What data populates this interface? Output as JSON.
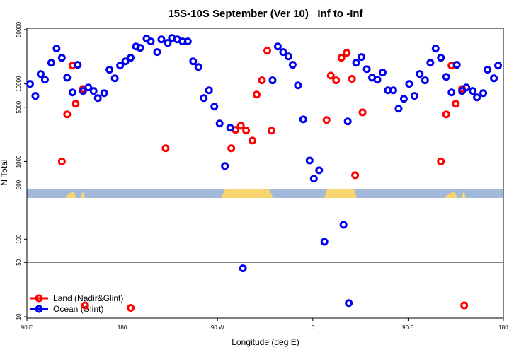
{
  "chart_data": {
    "type": "scatter",
    "title": "15S-10S September (Ver 10)   Inf to -Inf",
    "x_label": "Longitude (deg E)",
    "y_label": "N Total",
    "log_y": true,
    "legend": "lower-left",
    "xlim": [
      90,
      540
    ],
    "xticks": [
      {
        "value": 90,
        "label": "90 E"
      },
      180,
      {
        "value": 270,
        "label": "90 W"
      },
      {
        "value": 360,
        "label": "0"
      },
      {
        "value": 450,
        "label": "90 E"
      },
      {
        "value": 540,
        "label": "180"
      }
    ],
    "ylim": [
      9.6,
      52000
    ],
    "yticks": [
      10,
      50,
      100,
      500,
      1000,
      5000,
      10000,
      50000
    ],
    "series": [
      {
        "name": "Land (Nadir&Glint)",
        "color": "#ff0000",
        "x": [
          123,
          128,
          133,
          136,
          143,
          145,
          188,
          221,
          283,
          287,
          292,
          297,
          303,
          307,
          312,
          317,
          321,
          373,
          377,
          382,
          387,
          392,
          397,
          400,
          407,
          481,
          486,
          491,
          495,
          501,
          503
        ],
        "values": [
          1000,
          4050,
          17200,
          5540,
          8600,
          14,
          13,
          1480,
          1480,
          2550,
          2890,
          2500,
          1860,
          7280,
          11100,
          26700,
          2500,
          3420,
          12800,
          11100,
          21700,
          25100,
          11600,
          665,
          4300,
          1000,
          4050,
          17200,
          5540,
          8600,
          14
        ]
      },
      {
        "name": "Ocean (Glint)",
        "color": "#0000ee",
        "x": [
          93,
          98,
          103,
          107,
          113,
          118,
          123,
          128,
          133,
          138,
          143,
          148,
          153,
          157,
          163,
          168,
          173,
          178,
          183,
          188,
          193,
          197,
          203,
          207,
          213,
          217,
          223,
          227,
          232,
          237,
          242,
          247,
          252,
          257,
          262,
          267,
          272,
          277,
          282,
          294,
          322,
          327,
          332,
          337,
          341,
          346,
          351,
          357,
          361,
          366,
          371,
          389,
          393,
          394,
          401,
          406,
          411,
          416,
          421,
          426,
          431,
          436,
          441,
          446,
          451,
          456,
          461,
          466,
          471,
          476,
          481,
          486,
          491,
          496,
          501,
          505,
          511,
          515,
          521,
          525,
          531,
          535
        ],
        "values": [
          10000,
          7000,
          13400,
          11300,
          18700,
          28500,
          21700,
          12000,
          7760,
          17600,
          8100,
          8980,
          8100,
          6560,
          7590,
          15200,
          11800,
          17200,
          19500,
          21700,
          30300,
          29100,
          38300,
          35200,
          25700,
          37400,
          33700,
          39100,
          37400,
          35200,
          35200,
          19500,
          16500,
          6560,
          8260,
          5100,
          3080,
          875,
          2720,
          42,
          11100,
          30300,
          25700,
          22600,
          17600,
          9570,
          3490,
          1030,
          600,
          770,
          92.5,
          153,
          3280,
          15,
          18700,
          22200,
          15500,
          12000,
          11300,
          14000,
          8260,
          8260,
          4790,
          6420,
          10000,
          7000,
          13400,
          11100,
          18700,
          28500,
          21700,
          12300,
          7760,
          17600,
          8100,
          8980,
          8100,
          6700,
          7590,
          15200,
          11800,
          17200
        ]
      }
    ]
  }
}
